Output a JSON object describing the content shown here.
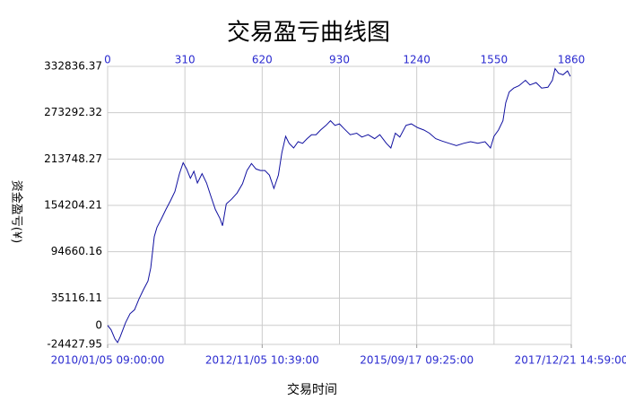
{
  "chart_data": {
    "type": "line",
    "title": "交易盈亏曲线图",
    "x_label": "交易时间",
    "y_label": "资金盈亏(¥)",
    "color": "#1010a0",
    "grid": true,
    "xlim": [
      0,
      1860
    ],
    "xticks": [
      0,
      310,
      620,
      930,
      1240,
      1550,
      1860
    ],
    "x2ticks": [
      {
        "value": 0,
        "label": "2010/01/05 09:00:00"
      },
      {
        "value": 620,
        "label": "2012/11/05 10:39:00"
      },
      {
        "value": 1240,
        "label": "2015/09/17 09:25:00"
      },
      {
        "value": 1860,
        "label": "2017/12/21 14:59:00"
      }
    ],
    "ylim": [
      -24427.95,
      332836.37
    ],
    "yticks": [
      -24427.95,
      0,
      35116.11,
      94660.16,
      154204.21,
      213748.27,
      273292.32,
      332836.37
    ],
    "x": [
      0,
      14,
      29,
      40,
      50,
      72,
      90,
      108,
      126,
      144,
      162,
      173,
      187,
      198,
      216,
      234,
      252,
      270,
      288,
      303,
      317,
      332,
      346,
      360,
      379,
      397,
      415,
      432,
      451,
      461,
      476,
      497,
      519,
      541,
      559,
      577,
      595,
      613,
      631,
      649,
      667,
      685,
      699,
      714,
      728,
      746,
      764,
      782,
      800,
      818,
      836,
      854,
      876,
      894,
      912,
      930,
      948,
      973,
      999,
      1020,
      1045,
      1071,
      1092,
      1118,
      1136,
      1154,
      1172,
      1197,
      1218,
      1244,
      1269,
      1291,
      1316,
      1341,
      1370,
      1399,
      1428,
      1456,
      1485,
      1514,
      1536,
      1550,
      1568,
      1586,
      1597,
      1611,
      1629,
      1650,
      1676,
      1694,
      1719,
      1741,
      1766,
      1784,
      1795,
      1809,
      1827,
      1845,
      1856
    ],
    "values": [
      0,
      -5800,
      -17300,
      -22000,
      -15000,
      3500,
      15000,
      20000,
      34000,
      46000,
      57000,
      74000,
      114000,
      126000,
      137000,
      149000,
      160000,
      172000,
      195000,
      209000,
      201000,
      189000,
      198000,
      183000,
      195000,
      183000,
      165000,
      149000,
      137000,
      128000,
      156000,
      162000,
      170000,
      182000,
      199000,
      208000,
      201000,
      199000,
      199000,
      193000,
      176000,
      193000,
      222000,
      243000,
      234000,
      228000,
      236000,
      234000,
      240000,
      245000,
      245000,
      251000,
      257000,
      263000,
      257000,
      259000,
      253000,
      245000,
      247000,
      242000,
      245000,
      240000,
      245000,
      234000,
      228000,
      247000,
      242000,
      257000,
      259000,
      254000,
      251000,
      247000,
      240000,
      237000,
      234000,
      231000,
      234000,
      236000,
      234000,
      236000,
      228000,
      243000,
      251000,
      263000,
      286000,
      300000,
      305000,
      308000,
      315000,
      309000,
      312000,
      305000,
      306000,
      315000,
      330000,
      324000,
      322000,
      327000,
      320000
    ]
  }
}
